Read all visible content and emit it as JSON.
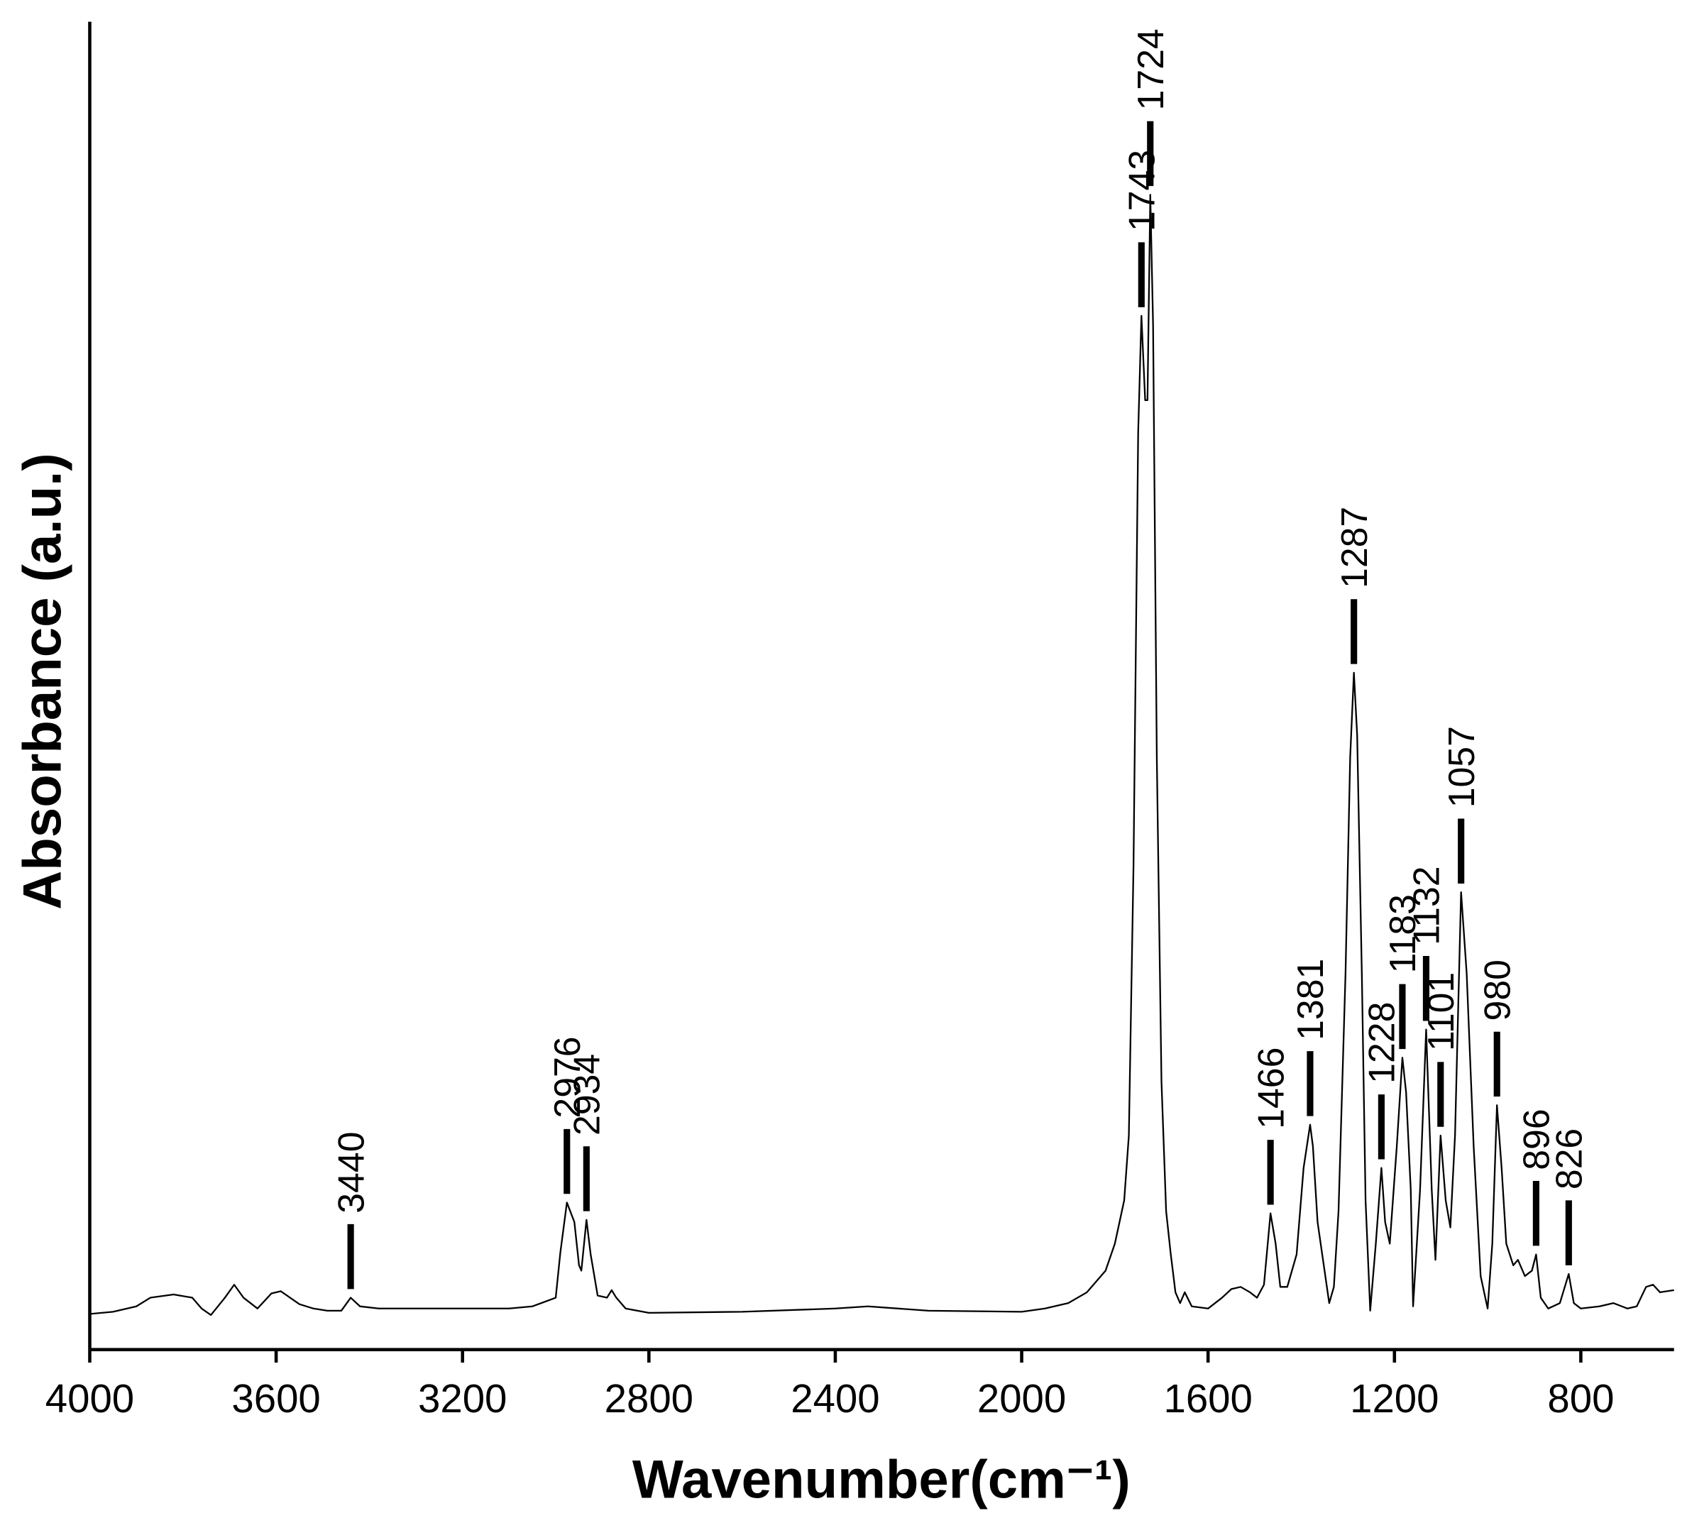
{
  "chart_data": {
    "type": "line",
    "xlabel": "Wavenumber(cm⁻¹)",
    "ylabel": "Absorbance (a.u.)",
    "xlim": [
      4000,
      600
    ],
    "ylim": [
      0,
      1228
    ],
    "xticks": [
      4000,
      3600,
      3200,
      2800,
      2400,
      2000,
      1600,
      1200,
      800
    ],
    "peak_labels": [
      3440,
      2976,
      2934,
      1743,
      1724,
      1466,
      1381,
      1287,
      1228,
      1183,
      1132,
      1101,
      1057,
      980,
      896,
      826
    ],
    "series": [
      {
        "color": "#000000",
        "x": [
          4000,
          3950,
          3900,
          3870,
          3820,
          3780,
          3760,
          3740,
          3710,
          3690,
          3670,
          3640,
          3610,
          3590,
          3570,
          3550,
          3520,
          3490,
          3460,
          3440,
          3420,
          3380,
          3300,
          3200,
          3100,
          3050,
          3000,
          2990,
          2976,
          2960,
          2950,
          2945,
          2934,
          2925,
          2910,
          2890,
          2880,
          2870,
          2850,
          2800,
          2600,
          2400,
          2330,
          2200,
          2000,
          1950,
          1900,
          1860,
          1820,
          1800,
          1780,
          1770,
          1760,
          1750,
          1743,
          1735,
          1730,
          1724,
          1718,
          1710,
          1700,
          1690,
          1680,
          1670,
          1660,
          1650,
          1635,
          1600,
          1570,
          1550,
          1530,
          1510,
          1495,
          1480,
          1466,
          1455,
          1445,
          1430,
          1410,
          1395,
          1381,
          1375,
          1365,
          1355,
          1340,
          1330,
          1320,
          1305,
          1295,
          1287,
          1280,
          1270,
          1262,
          1252,
          1240,
          1228,
          1220,
          1210,
          1195,
          1183,
          1175,
          1165,
          1160,
          1145,
          1132,
          1120,
          1112,
          1101,
          1090,
          1080,
          1070,
          1057,
          1045,
          1030,
          1015,
          1000,
          990,
          980,
          970,
          960,
          945,
          935,
          920,
          905,
          896,
          886,
          870,
          845,
          826,
          815,
          800,
          760,
          730,
          700,
          680,
          660,
          645,
          630,
          600
        ],
        "values": [
          33,
          35,
          40,
          48,
          51,
          48,
          38,
          32,
          48,
          60,
          48,
          38,
          52,
          54,
          48,
          42,
          38,
          36,
          36,
          48,
          40,
          38,
          38,
          38,
          38,
          40,
          48,
          90,
          136,
          118,
          78,
          73,
          120,
          88,
          50,
          48,
          55,
          48,
          38,
          34,
          35,
          38,
          40,
          36,
          35,
          38,
          43,
          53,
          73,
          98,
          138,
          198,
          448,
          848,
          956,
          878,
          878,
          1068,
          948,
          548,
          248,
          128,
          88,
          53,
          43,
          53,
          40,
          38,
          48,
          56,
          58,
          53,
          48,
          60,
          126,
          98,
          58,
          58,
          88,
          168,
          208,
          188,
          118,
          88,
          43,
          58,
          128,
          348,
          548,
          626,
          568,
          348,
          138,
          36,
          98,
          168,
          118,
          98,
          188,
          270,
          238,
          148,
          40,
          148,
          296,
          148,
          83,
          198,
          138,
          113,
          198,
          423,
          348,
          188,
          68,
          38,
          98,
          226,
          168,
          98,
          78,
          83,
          68,
          73,
          88,
          48,
          38,
          43,
          70,
          43,
          38,
          40,
          43,
          38,
          40,
          58,
          60,
          53,
          55
        ]
      }
    ]
  }
}
